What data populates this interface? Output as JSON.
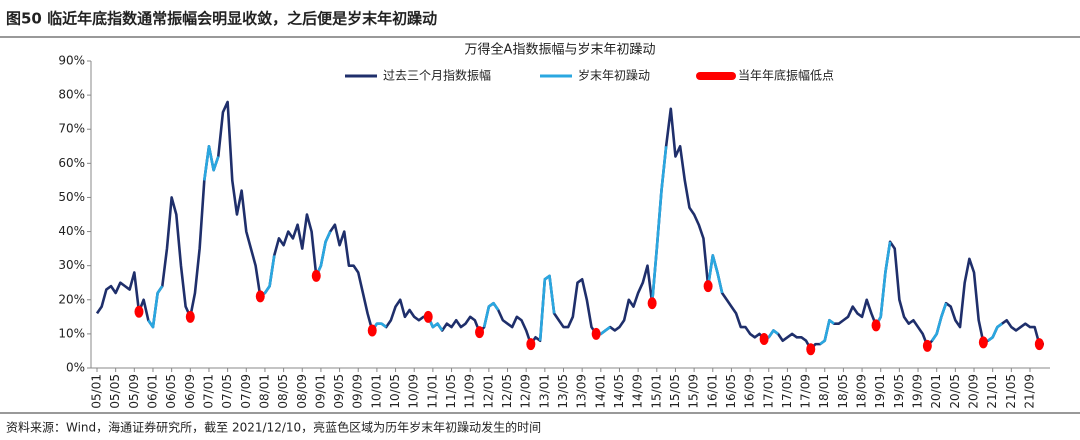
{
  "header": {
    "title": "图50 临近年底指数通常振幅会明显收敛，之后便是岁末年初躁动"
  },
  "chart_data": {
    "type": "line",
    "title": "万得全A指数振幅与岁末年初躁动",
    "categories": [
      "05/01",
      null,
      null,
      null,
      "05/05",
      null,
      null,
      null,
      "05/09",
      null,
      null,
      null,
      "06/01",
      null,
      null,
      null,
      "06/05",
      null,
      null,
      null,
      "06/09",
      null,
      null,
      null,
      "07/01",
      null,
      null,
      null,
      "07/05",
      null,
      null,
      null,
      "07/09",
      null,
      null,
      null,
      "08/01",
      null,
      null,
      null,
      "08/05",
      null,
      null,
      null,
      "08/09",
      null,
      null,
      null,
      "09/01",
      null,
      null,
      null,
      "09/05",
      null,
      null,
      null,
      "09/09",
      null,
      null,
      null,
      "10/01",
      null,
      null,
      null,
      "10/05",
      null,
      null,
      null,
      "10/09",
      null,
      null,
      null,
      "11/01",
      null,
      null,
      null,
      "11/05",
      null,
      null,
      null,
      "11/09",
      null,
      null,
      null,
      "12/01",
      null,
      null,
      null,
      "12/05",
      null,
      null,
      null,
      "12/09",
      null,
      null,
      null,
      "13/01",
      null,
      null,
      null,
      "13/05",
      null,
      null,
      null,
      "13/09",
      null,
      null,
      null,
      "14/01",
      null,
      null,
      null,
      "14/05",
      null,
      null,
      null,
      "14/09",
      null,
      null,
      null,
      "15/01",
      null,
      null,
      null,
      "15/05",
      null,
      null,
      null,
      "15/09",
      null,
      null,
      null,
      "16/01",
      null,
      null,
      null,
      "16/05",
      null,
      null,
      null,
      "16/09",
      null,
      null,
      null,
      "17/01",
      null,
      null,
      null,
      "17/05",
      null,
      null,
      null,
      "17/09",
      null,
      null,
      null,
      "18/01",
      null,
      null,
      null,
      "18/05",
      null,
      null,
      null,
      "18/09",
      null,
      null,
      null,
      "19/01",
      null,
      null,
      null,
      "19/05",
      null,
      null,
      null,
      "19/09",
      null,
      null,
      null,
      "20/01",
      null,
      null,
      null,
      "20/05",
      null,
      null,
      null,
      "20/09",
      null,
      null,
      null,
      "21/01",
      null,
      null,
      null,
      "21/05",
      null,
      null,
      null,
      "21/09",
      null,
      null,
      null
    ],
    "series": [
      {
        "name": "过去三个月指数振幅",
        "color": "#1f2f6b",
        "style": "line",
        "values": [
          16,
          18,
          23,
          24,
          22,
          25,
          24,
          23,
          28,
          16.5,
          20,
          14,
          12,
          22,
          24,
          35,
          50,
          45,
          30,
          18,
          15,
          22,
          35,
          55,
          65,
          58,
          62,
          75,
          78,
          55,
          45,
          52,
          40,
          35,
          30,
          21,
          22,
          24,
          33,
          38,
          36,
          40,
          38,
          42,
          35,
          45,
          40,
          27,
          30,
          37,
          40,
          42,
          36,
          40,
          30,
          30,
          28,
          22,
          16,
          11,
          13,
          13,
          12,
          14,
          18,
          20,
          15,
          17,
          15,
          14,
          15,
          15,
          12,
          13,
          11,
          13,
          12,
          14,
          12,
          13,
          15,
          14,
          10.5,
          12,
          18,
          19,
          17,
          14,
          13,
          12,
          15,
          14,
          11,
          7,
          9,
          8,
          26,
          27,
          16,
          14,
          12,
          12,
          15,
          25,
          26,
          20,
          12,
          10,
          10,
          11,
          12,
          11,
          12,
          14,
          20,
          18,
          22,
          25,
          30,
          19,
          35,
          52,
          65,
          76,
          62,
          65,
          55,
          47,
          45,
          42,
          38,
          24,
          33,
          28,
          22,
          20,
          18,
          16,
          12,
          12,
          10,
          9,
          10,
          8.5,
          9,
          11,
          10,
          8,
          9,
          10,
          9,
          9,
          8,
          5.5,
          7,
          7,
          8,
          14,
          13,
          13,
          14,
          15,
          18,
          16,
          15,
          20,
          16,
          12.5,
          15,
          28,
          37,
          35,
          20,
          15,
          13,
          14,
          12,
          10,
          6.5,
          8,
          10,
          15,
          19,
          18,
          14,
          12,
          25,
          32,
          28,
          14,
          7.5,
          8,
          9,
          12,
          13,
          14,
          12,
          11,
          12,
          13,
          12,
          12,
          7,
          7
        ]
      },
      {
        "name": "岁末年初躁动",
        "color": "#2aa7e0",
        "style": "line",
        "values": [
          null,
          null,
          null,
          null,
          null,
          null,
          null,
          null,
          null,
          null,
          null,
          14,
          12,
          22,
          24,
          null,
          null,
          null,
          null,
          null,
          null,
          null,
          null,
          55,
          65,
          58,
          62,
          null,
          null,
          null,
          null,
          null,
          null,
          null,
          null,
          21,
          22,
          24,
          33,
          null,
          null,
          null,
          null,
          null,
          null,
          null,
          null,
          27,
          30,
          37,
          40,
          null,
          null,
          null,
          null,
          null,
          null,
          null,
          null,
          11,
          13,
          13,
          12,
          null,
          null,
          null,
          null,
          null,
          null,
          null,
          null,
          15,
          12,
          13,
          11,
          null,
          null,
          null,
          null,
          null,
          null,
          null,
          null,
          12,
          18,
          19,
          17,
          null,
          null,
          null,
          null,
          null,
          null,
          null,
          null,
          8,
          26,
          27,
          16,
          null,
          null,
          null,
          null,
          null,
          null,
          null,
          null,
          10,
          10,
          11,
          12,
          null,
          null,
          null,
          null,
          null,
          null,
          null,
          null,
          19,
          35,
          52,
          65,
          null,
          null,
          null,
          null,
          null,
          null,
          null,
          null,
          24,
          33,
          28,
          22,
          null,
          null,
          null,
          null,
          null,
          null,
          null,
          null,
          8.5,
          9,
          11,
          10,
          null,
          null,
          null,
          null,
          null,
          null,
          null,
          null,
          7,
          8,
          14,
          13,
          null,
          null,
          null,
          null,
          null,
          null,
          null,
          null,
          12.5,
          15,
          28,
          37,
          null,
          null,
          null,
          null,
          null,
          null,
          null,
          null,
          8,
          10,
          15,
          19,
          null,
          null,
          null,
          null,
          null,
          null,
          null,
          null,
          8,
          9,
          12,
          13,
          null,
          null,
          null,
          null,
          null,
          null,
          null,
          null,
          null
        ]
      },
      {
        "name": "当年年底振幅低点",
        "color": "#ff0000",
        "style": "dot",
        "values": [
          null,
          null,
          null,
          null,
          null,
          null,
          null,
          null,
          null,
          16.5,
          null,
          null,
          null,
          null,
          null,
          null,
          null,
          null,
          null,
          null,
          15,
          null,
          null,
          null,
          null,
          null,
          null,
          null,
          null,
          null,
          null,
          null,
          null,
          null,
          null,
          21,
          null,
          null,
          null,
          null,
          null,
          null,
          null,
          null,
          null,
          null,
          null,
          27,
          null,
          null,
          null,
          null,
          null,
          null,
          null,
          null,
          null,
          null,
          null,
          11,
          null,
          null,
          null,
          null,
          null,
          null,
          null,
          null,
          null,
          null,
          null,
          15,
          null,
          null,
          null,
          null,
          null,
          null,
          null,
          null,
          null,
          null,
          10.5,
          null,
          null,
          null,
          null,
          null,
          null,
          null,
          null,
          null,
          null,
          7,
          null,
          null,
          null,
          null,
          null,
          null,
          null,
          null,
          null,
          null,
          null,
          null,
          null,
          10,
          null,
          null,
          null,
          null,
          null,
          null,
          null,
          null,
          null,
          null,
          null,
          19,
          null,
          null,
          null,
          null,
          null,
          null,
          null,
          null,
          null,
          null,
          null,
          24,
          null,
          null,
          null,
          null,
          null,
          null,
          null,
          null,
          null,
          null,
          null,
          8.5,
          null,
          null,
          null,
          null,
          null,
          null,
          null,
          null,
          null,
          5.5,
          null,
          null,
          null,
          null,
          null,
          null,
          null,
          null,
          null,
          null,
          null,
          null,
          null,
          12.5,
          null,
          null,
          null,
          null,
          null,
          null,
          null,
          null,
          null,
          null,
          6.5,
          null,
          null,
          null,
          null,
          null,
          null,
          null,
          null,
          null,
          null,
          null,
          7.5,
          null,
          null,
          null,
          null,
          null,
          null,
          null,
          null,
          null,
          null,
          null,
          7,
          null
        ]
      }
    ],
    "ylim": [
      0,
      90
    ],
    "yticks": [
      {
        "value": 0,
        "label": "0%"
      },
      {
        "value": 10,
        "label": "10%"
      },
      {
        "value": 20,
        "label": "20%"
      },
      {
        "value": 30,
        "label": "30%"
      },
      {
        "value": 40,
        "label": "40%"
      },
      {
        "value": 50,
        "label": "50%"
      },
      {
        "value": 60,
        "label": "60%"
      },
      {
        "value": 70,
        "label": "70%"
      },
      {
        "value": 80,
        "label": "80%"
      },
      {
        "value": 90,
        "label": "90%"
      }
    ]
  },
  "footer": {
    "source": "资料来源：Wind，海通证券研究所，截至 2021/12/10，亮蓝色区域为历年岁末年初躁动发生的时间"
  }
}
